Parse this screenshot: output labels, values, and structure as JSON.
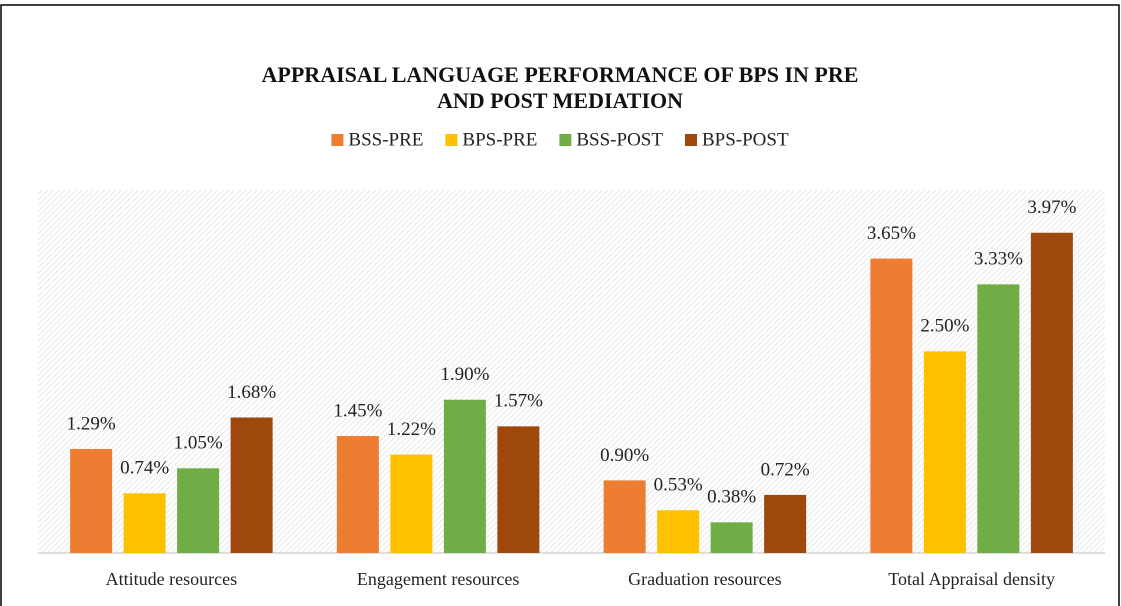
{
  "chart_data": {
    "type": "bar",
    "title": "APPRAISAL LANGUAGE PERFORMANCE OF BPS IN PRE AND POST MEDIATION",
    "categories": [
      "Attitude resources",
      "Engagement resources",
      "Graduation resources",
      "Total Appraisal density"
    ],
    "series": [
      {
        "name": "BSS-PRE",
        "color": "#ED7D31",
        "values": [
          1.29,
          1.45,
          0.9,
          3.65
        ],
        "value_labels": [
          "1.29%",
          "1.45%",
          "0.90%",
          "3.65%"
        ]
      },
      {
        "name": "BPS-PRE",
        "color": "#FFC000",
        "values": [
          0.74,
          1.22,
          0.53,
          2.5
        ],
        "value_labels": [
          "0.74%",
          "1.22%",
          "0.53%",
          "2.50%"
        ]
      },
      {
        "name": "BSS-POST",
        "color": "#70AD47",
        "values": [
          1.05,
          1.9,
          0.38,
          3.33
        ],
        "value_labels": [
          "1.05%",
          "1.90%",
          "0.38%",
          "3.33%"
        ]
      },
      {
        "name": "BPS-POST",
        "color": "#9E480E",
        "values": [
          1.68,
          1.57,
          0.72,
          3.97
        ],
        "value_labels": [
          "1.68%",
          "1.57%",
          "0.72%",
          "3.97%"
        ]
      }
    ],
    "ylim": [
      0,
      4.5
    ],
    "legend": "top"
  }
}
